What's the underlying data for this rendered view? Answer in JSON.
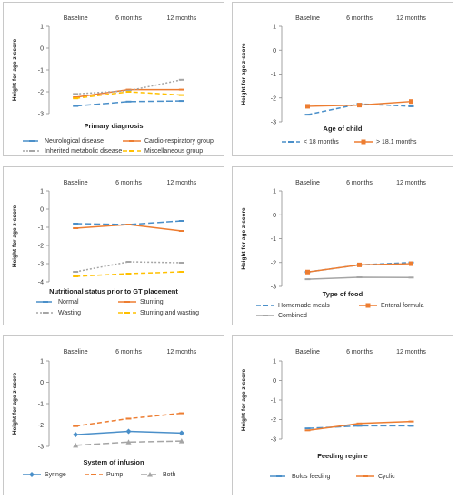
{
  "chart_data": [
    {
      "type": "line",
      "title": "Primary diagnosis",
      "ylabel": "Height for age z-score",
      "categories": [
        "Baseline",
        "6 months",
        "12 months"
      ],
      "ylim": [
        -3,
        1
      ],
      "yticks": [
        "1",
        "0",
        "-1",
        "-2",
        "-3"
      ],
      "legend_position": "bottom",
      "series": [
        {
          "name": "Neurological disease",
          "values": [
            -2.65,
            -2.45,
            -2.42
          ],
          "color": "#4a8fc9",
          "dash": "long-dash",
          "marker": "dash"
        },
        {
          "name": "Cardio-respiratory group",
          "values": [
            -2.25,
            -1.9,
            -1.9
          ],
          "color": "#ed7d31",
          "dash": "solid",
          "marker": "dash"
        },
        {
          "name": "Inherited metabolic disease",
          "values": [
            -2.1,
            -1.95,
            -1.45
          ],
          "color": "#a5a5a5",
          "dash": "dot",
          "marker": "dash"
        },
        {
          "name": "Miscellaneous group",
          "values": [
            -2.3,
            -2.0,
            -2.15
          ],
          "color": "#ffc000",
          "dash": "dash",
          "marker": "dash"
        }
      ]
    },
    {
      "type": "line",
      "title": "Age of child",
      "ylabel": "Height for age z-score",
      "categories": [
        "Baseline",
        "6 months",
        "12 months"
      ],
      "ylim": [
        -3,
        1
      ],
      "yticks": [
        "1",
        "0",
        "-1",
        "-2",
        "-3"
      ],
      "legend_position": "bottom",
      "series": [
        {
          "name": "< 18 months",
          "values": [
            -2.7,
            -2.25,
            -2.35
          ],
          "color": "#4a8fc9",
          "dash": "dash",
          "marker": "dash"
        },
        {
          "name": "> 18.1 months",
          "values": [
            -2.35,
            -2.3,
            -2.15
          ],
          "color": "#ed7d31",
          "dash": "solid",
          "marker": "square"
        }
      ]
    },
    {
      "type": "line",
      "title": "Nutritional status prior to GT placement",
      "ylabel": "Height for age z-score",
      "categories": [
        "Baseline",
        "6 months",
        "12 months"
      ],
      "ylim": [
        -4,
        1
      ],
      "yticks": [
        "1",
        "0",
        "-1",
        "-2",
        "-3",
        "-4"
      ],
      "legend_position": "bottom",
      "series": [
        {
          "name": "Normal",
          "values": [
            -0.8,
            -0.85,
            -0.65
          ],
          "color": "#4a8fc9",
          "dash": "long-dash",
          "marker": "dash"
        },
        {
          "name": "Stunting",
          "values": [
            -1.05,
            -0.85,
            -1.2
          ],
          "color": "#ed7d31",
          "dash": "solid",
          "marker": "dash"
        },
        {
          "name": "Wasting",
          "values": [
            -3.45,
            -2.9,
            -2.95
          ],
          "color": "#a5a5a5",
          "dash": "dot",
          "marker": "dash"
        },
        {
          "name": "Stunting and wasting",
          "values": [
            -3.7,
            -3.55,
            -3.45
          ],
          "color": "#ffc000",
          "dash": "dash",
          "marker": "dash"
        }
      ]
    },
    {
      "type": "line",
      "title": "Type of food",
      "ylabel": "Height for age z-score",
      "categories": [
        "Baseline",
        "6 months",
        "12 months"
      ],
      "ylim": [
        -3,
        1
      ],
      "yticks": [
        "1",
        "0",
        "-1",
        "-2",
        "-3"
      ],
      "legend_position": "bottom",
      "series": [
        {
          "name": "Homemade meals",
          "values": [
            -2.4,
            -2.1,
            -2.0
          ],
          "color": "#4a8fc9",
          "dash": "dash",
          "marker": "dash"
        },
        {
          "name": "Enteral formula",
          "values": [
            -2.4,
            -2.1,
            -2.05
          ],
          "color": "#ed7d31",
          "dash": "solid",
          "marker": "square"
        },
        {
          "name": "Combined",
          "values": [
            -2.7,
            -2.62,
            -2.63
          ],
          "color": "#a5a5a5",
          "dash": "solid",
          "marker": "dash"
        }
      ]
    },
    {
      "type": "line",
      "title": "System of infusion",
      "ylabel": "Height for age z-score",
      "categories": [
        "Baseline",
        "6 months",
        "12 months"
      ],
      "ylim": [
        -3,
        1
      ],
      "yticks": [
        "1",
        "0",
        "-1",
        "-2",
        "-3"
      ],
      "legend_position": "bottom",
      "series": [
        {
          "name": "Syringe",
          "values": [
            -2.45,
            -2.3,
            -2.38
          ],
          "color": "#4a8fc9",
          "dash": "solid",
          "marker": "diamond"
        },
        {
          "name": "Pump",
          "values": [
            -2.05,
            -1.7,
            -1.45
          ],
          "color": "#ed7d31",
          "dash": "dash",
          "marker": "dash"
        },
        {
          "name": "Both",
          "values": [
            -2.95,
            -2.8,
            -2.75
          ],
          "color": "#a5a5a5",
          "dash": "long-dash",
          "marker": "triangle"
        }
      ]
    },
    {
      "type": "line",
      "title": "Feeding regime",
      "ylabel": "Height for age z-score",
      "categories": [
        "Baseline",
        "6 months",
        "12 months"
      ],
      "ylim": [
        -3,
        1
      ],
      "yticks": [
        "1",
        "0",
        "-1",
        "-2",
        "-3"
      ],
      "legend_position": "bottom",
      "series": [
        {
          "name": "Bolus feeding",
          "values": [
            -2.45,
            -2.32,
            -2.32
          ],
          "color": "#4a8fc9",
          "dash": "long-dash",
          "marker": "dash"
        },
        {
          "name": "Cyclic",
          "values": [
            -2.55,
            -2.2,
            -2.1
          ],
          "color": "#ed7d31",
          "dash": "solid",
          "marker": "dash"
        }
      ]
    }
  ]
}
